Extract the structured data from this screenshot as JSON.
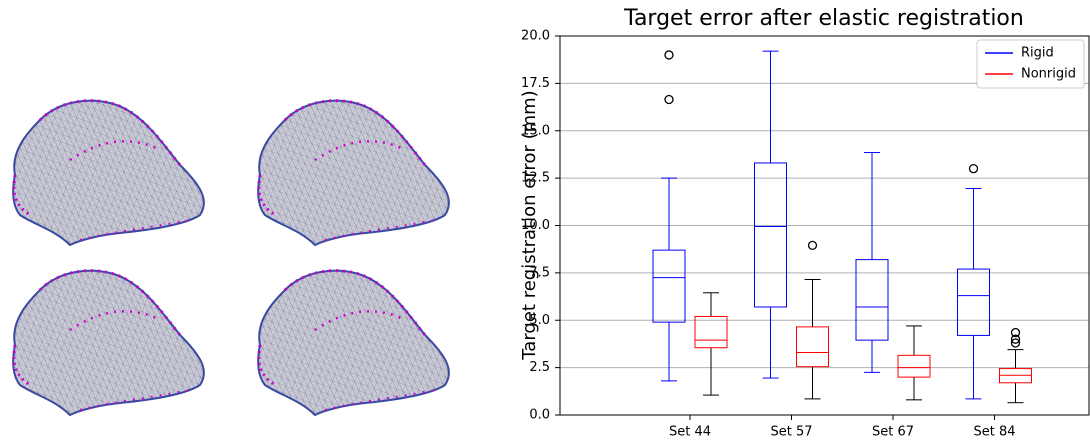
{
  "chart_data": {
    "type": "box",
    "title": "Target error after elastic registration",
    "y_label": "Target registration error (mm)",
    "categories": [
      "Set 44",
      "Set 57",
      "Set 67",
      "Set 84"
    ],
    "ylim": [
      0,
      20
    ],
    "yticks": [
      {
        "value": 0,
        "label": "0.0"
      },
      2.5,
      {
        "value": 5,
        "label": "5.0"
      },
      7.5,
      {
        "value": 10,
        "label": "10.0"
      },
      12.5,
      {
        "value": 15,
        "label": "15.0"
      },
      17.5,
      {
        "value": 20,
        "label": "20.0"
      }
    ],
    "grid": true,
    "legend": "upper right",
    "series": [
      {
        "name": "Rigid",
        "color": "#0000ff",
        "whisker_color": "#0000ff",
        "boxes": [
          {
            "whislo": 1.8,
            "q1": 4.9,
            "med": 7.25,
            "q3": 8.7,
            "whishi": 12.5,
            "fliers": [
              16.65,
              19.0
            ]
          },
          {
            "whislo": 1.95,
            "q1": 5.7,
            "med": 9.95,
            "q3": 13.3,
            "whishi": 19.2,
            "fliers": []
          },
          {
            "whislo": 2.25,
            "q1": 3.95,
            "med": 5.7,
            "q3": 8.2,
            "whishi": 13.85,
            "fliers": []
          },
          {
            "whislo": 0.85,
            "q1": 4.2,
            "med": 6.3,
            "q3": 7.7,
            "whishi": 11.95,
            "fliers": [
              13.0
            ]
          }
        ]
      },
      {
        "name": "Nonrigid",
        "color": "#ff0000",
        "whisker_color": "#000000",
        "boxes": [
          {
            "whislo": 1.05,
            "q1": 3.55,
            "med": 3.95,
            "q3": 5.2,
            "whishi": 6.45,
            "fliers": []
          },
          {
            "whislo": 0.85,
            "q1": 2.55,
            "med": 3.3,
            "q3": 4.65,
            "whishi": 7.15,
            "fliers": [
              8.95
            ]
          },
          {
            "whislo": 0.8,
            "q1": 2.0,
            "med": 2.5,
            "q3": 3.15,
            "whishi": 4.7,
            "fliers": []
          },
          {
            "whislo": 0.65,
            "q1": 1.7,
            "med": 2.1,
            "q3": 2.45,
            "whishi": 3.45,
            "fliers": [
              3.8,
              4.0,
              4.35
            ]
          }
        ]
      }
    ]
  }
}
